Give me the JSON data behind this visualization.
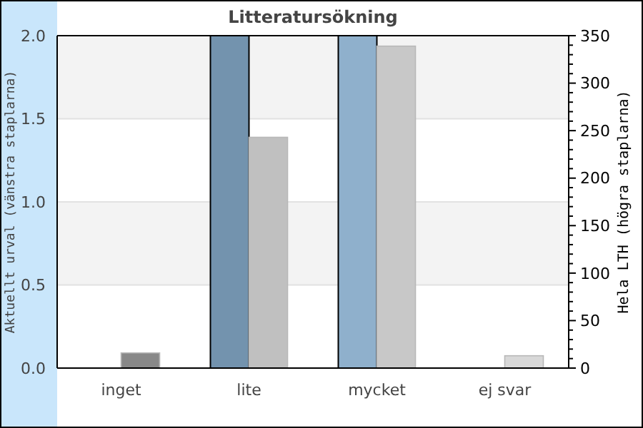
{
  "chart_data": {
    "type": "bar",
    "title": "Litteratursökning",
    "ylabel": "Aktuellt urval (vänstra staplarna)",
    "y2label": "Hela LTH (högra staplarna)",
    "categories": [
      "inget",
      "lite",
      "mycket",
      "ej svar"
    ],
    "series": [
      {
        "axis": "y",
        "colors": [
          "#7393ae",
          "#7393ae",
          "#8fb0cc",
          "#8fb0cc"
        ],
        "values": [
          0,
          2,
          2,
          0
        ]
      },
      {
        "axis": "y2",
        "colors": [
          "#888888",
          "#c0c0c0",
          "#c8c8c8",
          "#d8d8d8"
        ],
        "values": [
          16,
          243,
          339,
          13
        ]
      }
    ],
    "ylim": [
      0,
      2
    ],
    "yticks": [
      {
        "value": 0,
        "label": "0.0"
      },
      {
        "value": 0.5,
        "label": "0.5"
      },
      {
        "value": 1,
        "label": "1.0"
      },
      {
        "value": 1.5,
        "label": "1.5"
      },
      {
        "value": 2,
        "label": "2.0"
      }
    ],
    "y2lim": [
      0,
      350
    ],
    "y2ticks": [
      0,
      {
        "value": 10,
        "label": null
      },
      {
        "value": 20,
        "label": null
      },
      {
        "value": 30,
        "label": null
      },
      {
        "value": 40,
        "label": null
      },
      50,
      {
        "value": 60,
        "label": null
      },
      {
        "value": 70,
        "label": null
      },
      {
        "value": 80,
        "label": null
      },
      {
        "value": 90,
        "label": null
      },
      100,
      {
        "value": 110,
        "label": null
      },
      {
        "value": 120,
        "label": null
      },
      {
        "value": 130,
        "label": null
      },
      {
        "value": 140,
        "label": null
      },
      150,
      {
        "value": 160,
        "label": null
      },
      {
        "value": 170,
        "label": null
      },
      {
        "value": 180,
        "label": null
      },
      {
        "value": 190,
        "label": null
      },
      200,
      {
        "value": 210,
        "label": null
      },
      {
        "value": 220,
        "label": null
      },
      {
        "value": 230,
        "label": null
      },
      {
        "value": 240,
        "label": null
      },
      250,
      {
        "value": 260,
        "label": null
      },
      {
        "value": 270,
        "label": null
      },
      {
        "value": 280,
        "label": null
      },
      {
        "value": 290,
        "label": null
      },
      300,
      {
        "value": 310,
        "label": null
      },
      {
        "value": 320,
        "label": null
      },
      {
        "value": 330,
        "label": null
      },
      {
        "value": 340,
        "label": null
      },
      350
    ],
    "grid": "y"
  }
}
